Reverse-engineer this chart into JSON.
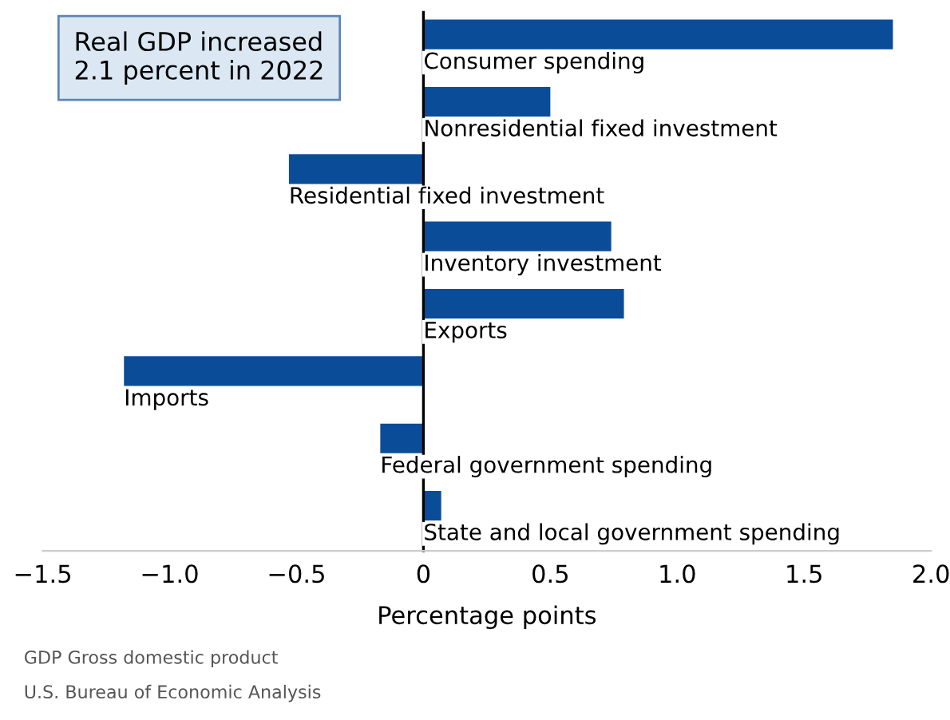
{
  "chart_data": {
    "type": "bar",
    "orientation": "horizontal",
    "xlabel": "Percentage points",
    "categories": [
      "Consumer spending",
      "Nonresidential fixed investment",
      "Residential fixed investment",
      "Inventory investment",
      "Exports",
      "Imports",
      "Federal government spending",
      "State and local government spending"
    ],
    "values": [
      1.85,
      0.5,
      -0.53,
      0.74,
      0.79,
      -1.18,
      -0.17,
      0.07
    ],
    "color": "#0a4c97",
    "xlim": [
      -1.5,
      2.0
    ],
    "xticks": [
      {
        "value": -1.5,
        "label": "−1.5"
      },
      {
        "value": -1.0,
        "label": "−1.0"
      },
      {
        "value": -0.5,
        "label": "−0.5"
      },
      0,
      0.5,
      {
        "value": 1.0,
        "label": "1.0"
      },
      1.5,
      {
        "value": 2.0,
        "label": "2.0"
      }
    ],
    "annotations": [
      "Real GDP increased\n2.1 percent in 2022",
      "GDP Gross domestic product",
      "U.S. Bureau of Economic Analysis"
    ],
    "tick_labels": "x",
    "grid": false
  }
}
